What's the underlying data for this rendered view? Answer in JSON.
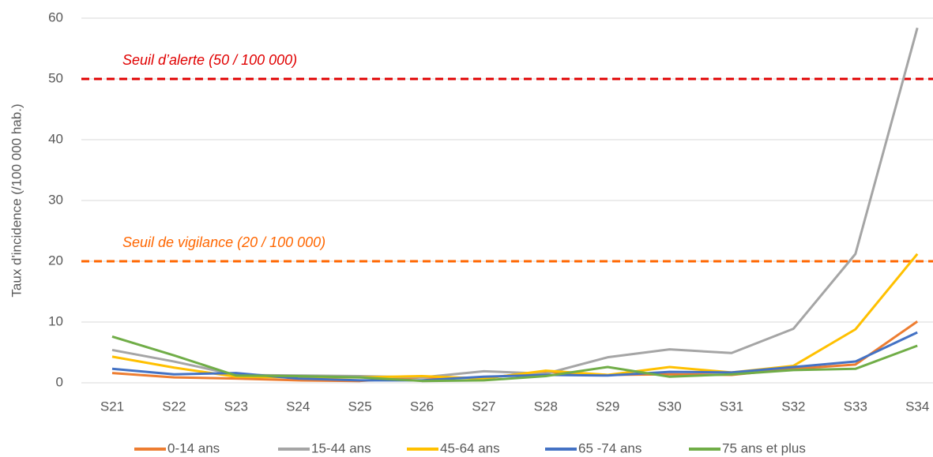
{
  "chart_data": {
    "type": "line",
    "ylabel": "Taux d'incidence (/100 000 hab.)",
    "categories": [
      "S21",
      "S22",
      "S23",
      "S24",
      "S25",
      "S26",
      "S27",
      "S28",
      "S29",
      "S30",
      "S31",
      "S32",
      "S33",
      "S34"
    ],
    "series": [
      {
        "name": "0-14 ans",
        "color": "#ed7d31",
        "values": [
          1.6,
          0.9,
          0.7,
          0.4,
          0.3,
          0.9,
          0.8,
          1.8,
          1.3,
          1.4,
          1.3,
          2.3,
          3.0,
          10.1
        ]
      },
      {
        "name": "15-44 ans",
        "color": "#a5a5a5",
        "values": [
          5.4,
          3.5,
          1.3,
          1.2,
          1.1,
          0.9,
          1.9,
          1.5,
          4.2,
          5.5,
          4.9,
          8.9,
          21.2,
          58.4
        ]
      },
      {
        "name": "45-64 ans",
        "color": "#ffc000",
        "values": [
          4.3,
          2.5,
          1.0,
          0.9,
          0.9,
          1.1,
          0.7,
          2.0,
          1.3,
          2.6,
          1.7,
          2.8,
          8.8,
          21.2
        ]
      },
      {
        "name": "65 -74 ans",
        "color": "#4472c4",
        "values": [
          2.3,
          1.4,
          1.6,
          0.7,
          0.4,
          0.4,
          1.0,
          1.3,
          1.2,
          1.8,
          1.7,
          2.6,
          3.5,
          8.3
        ]
      },
      {
        "name": "75 ans et plus",
        "color": "#70ad47",
        "values": [
          7.6,
          4.5,
          1.2,
          1.1,
          0.9,
          0.3,
          0.4,
          1.1,
          2.6,
          1.0,
          1.4,
          2.1,
          2.3,
          6.1
        ]
      }
    ],
    "thresholds": [
      {
        "label": "Seuil d’alerte (50 / 100 000)",
        "value": 50,
        "color": "#e00000"
      },
      {
        "label": "Seuil de vigilance (20 / 100 000)",
        "value": 20,
        "color": "#ff6600"
      }
    ],
    "ylim": [
      0,
      60
    ],
    "yticks": [
      0,
      10,
      20,
      30,
      40,
      50,
      60
    ],
    "grid": true,
    "legend": "bottom"
  }
}
